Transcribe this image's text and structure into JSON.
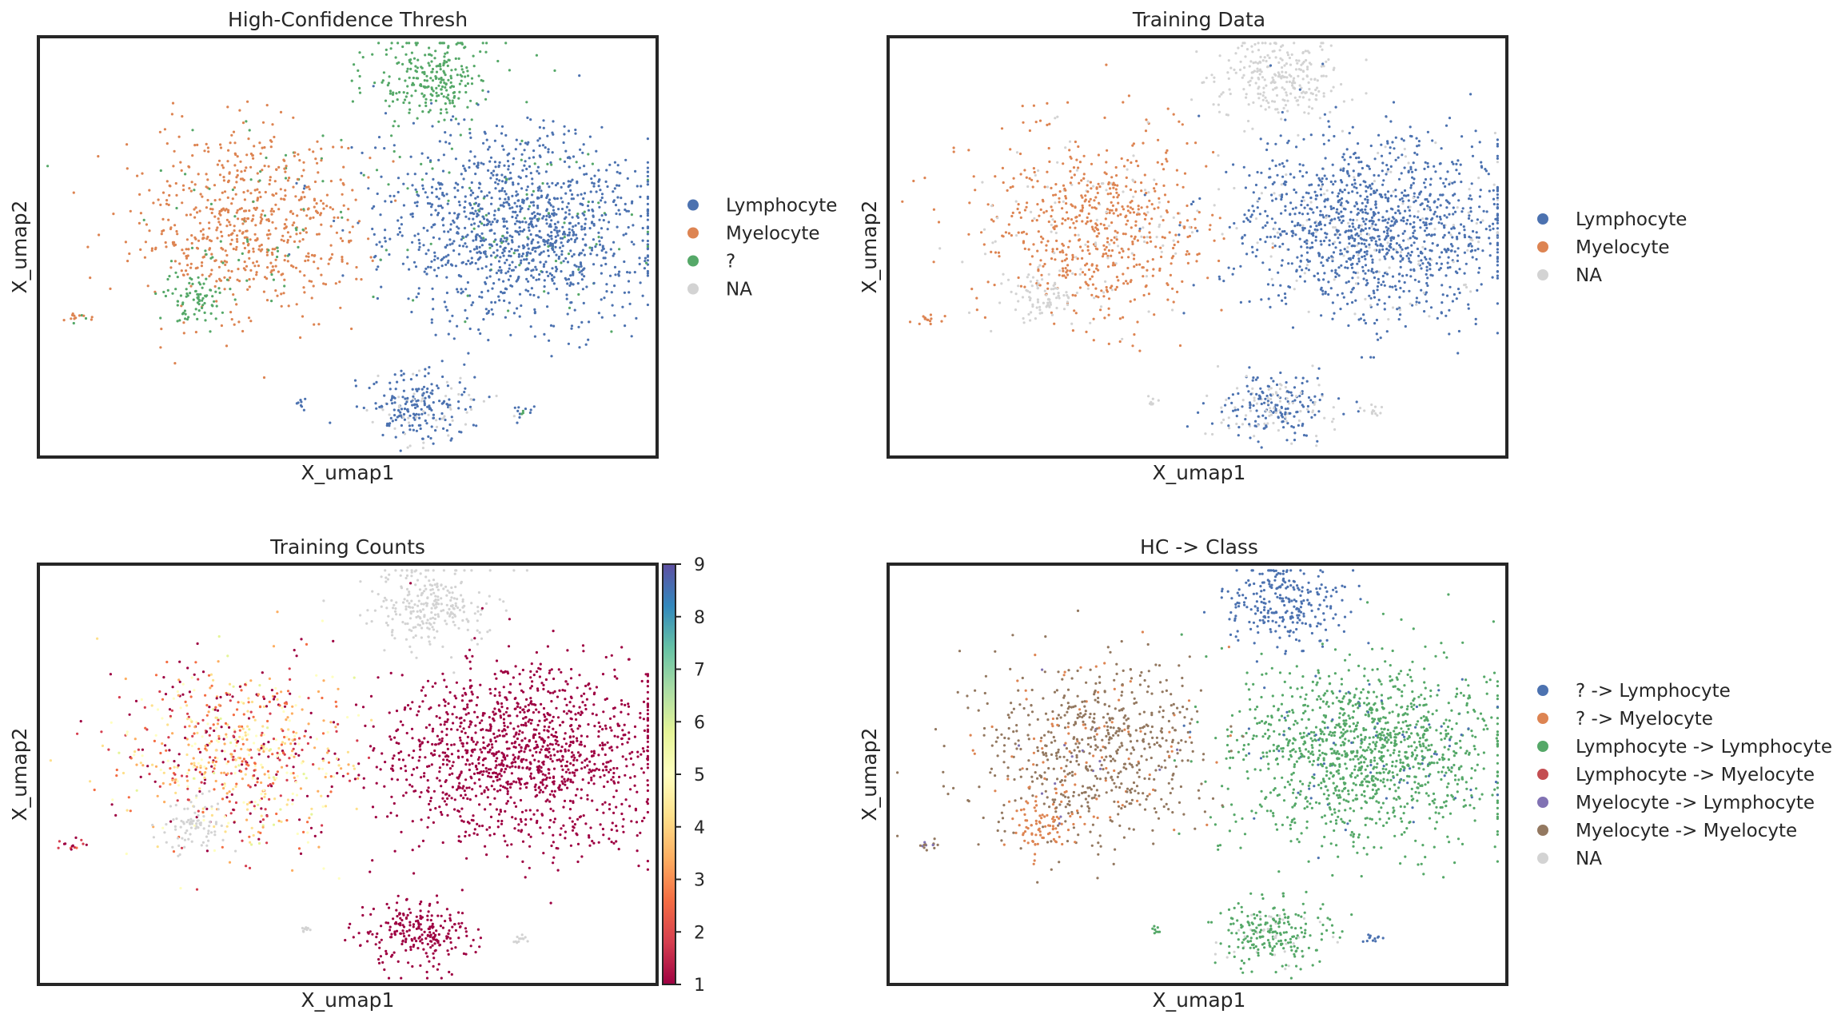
{
  "chart_data": [
    {
      "type": "scatter",
      "title": "High-Confidence Thresh",
      "xlabel": "X_umap1",
      "ylabel": "X_umap2",
      "legend_position": "right",
      "categories": [
        {
          "name": "Lymphocyte",
          "color": "#4c72b0"
        },
        {
          "name": "Myelocyte",
          "color": "#dd8452"
        },
        {
          "name": "?",
          "color": "#55a868"
        },
        {
          "name": "NA",
          "color": "#d3d3d3"
        }
      ],
      "clusters": [
        {
          "name": "top-island",
          "cx": 0.64,
          "cy": 0.9,
          "mix": {
            "?": 1.0
          }
        },
        {
          "name": "lymphoid-main",
          "cx": 0.78,
          "cy": 0.55,
          "mix": {
            "Lymphocyte": 0.93,
            "?": 0.07
          }
        },
        {
          "name": "myeloid-main",
          "cx": 0.33,
          "cy": 0.55,
          "mix": {
            "Myelocyte": 0.9,
            "?": 0.1
          }
        },
        {
          "name": "left-small",
          "cx": 0.25,
          "cy": 0.38,
          "mix": {
            "?": 1.0
          }
        },
        {
          "name": "bottom-box",
          "cx": 0.62,
          "cy": 0.12,
          "mix": {
            "Lymphocyte": 0.75,
            "NA": 0.25
          }
        },
        {
          "name": "far-left",
          "cx": 0.06,
          "cy": 0.33,
          "mix": {
            "Myelocyte": 0.7,
            "?": 0.3
          }
        },
        {
          "name": "tiny-left",
          "cx": 0.43,
          "cy": 0.13,
          "mix": {
            "Lymphocyte": 1.0
          }
        },
        {
          "name": "tiny-right",
          "cx": 0.78,
          "cy": 0.11,
          "mix": {
            "Lymphocyte": 0.6,
            "?": 0.4
          }
        }
      ]
    },
    {
      "type": "scatter",
      "title": "Training Data",
      "xlabel": "X_umap1",
      "ylabel": "X_umap2",
      "legend_position": "right",
      "categories": [
        {
          "name": "Lymphocyte",
          "color": "#4c72b0"
        },
        {
          "name": "Myelocyte",
          "color": "#dd8452"
        },
        {
          "name": "NA",
          "color": "#d3d3d3"
        }
      ],
      "clusters": [
        {
          "name": "top-island",
          "cx": 0.64,
          "cy": 0.9,
          "mix": {
            "NA": 1.0
          }
        },
        {
          "name": "lymphoid-main",
          "cx": 0.78,
          "cy": 0.55,
          "mix": {
            "Lymphocyte": 0.9,
            "NA": 0.1
          }
        },
        {
          "name": "myeloid-main",
          "cx": 0.33,
          "cy": 0.55,
          "mix": {
            "Myelocyte": 0.85,
            "NA": 0.15
          }
        },
        {
          "name": "left-small",
          "cx": 0.25,
          "cy": 0.38,
          "mix": {
            "NA": 1.0
          }
        },
        {
          "name": "bottom-box",
          "cx": 0.62,
          "cy": 0.12,
          "mix": {
            "Lymphocyte": 0.65,
            "NA": 0.35
          }
        },
        {
          "name": "far-left",
          "cx": 0.06,
          "cy": 0.33,
          "mix": {
            "Myelocyte": 1.0
          }
        },
        {
          "name": "tiny-left",
          "cx": 0.43,
          "cy": 0.13,
          "mix": {
            "NA": 1.0
          }
        },
        {
          "name": "tiny-right",
          "cx": 0.78,
          "cy": 0.11,
          "mix": {
            "NA": 1.0
          }
        }
      ]
    },
    {
      "type": "scatter",
      "title": "Training Counts",
      "xlabel": "X_umap1",
      "ylabel": "X_umap2",
      "colorbar": {
        "cmap": "Spectral",
        "range": [
          1,
          9
        ],
        "ticks": [
          "1",
          "2",
          "3",
          "4",
          "5",
          "6",
          "7",
          "8",
          "9"
        ]
      },
      "na_color": "#d3d3d3",
      "clusters": [
        {
          "name": "top-island",
          "cx": 0.64,
          "cy": 0.9,
          "values": "NA"
        },
        {
          "name": "lymphoid-main",
          "cx": 0.78,
          "cy": 0.55,
          "values": [
            1,
            1
          ]
        },
        {
          "name": "myeloid-main",
          "cx": 0.33,
          "cy": 0.55,
          "values": [
            1,
            6
          ]
        },
        {
          "name": "left-small",
          "cx": 0.25,
          "cy": 0.38,
          "values": "NA"
        },
        {
          "name": "bottom-box",
          "cx": 0.62,
          "cy": 0.12,
          "values": [
            1,
            1
          ]
        },
        {
          "name": "far-left",
          "cx": 0.06,
          "cy": 0.33,
          "values": [
            1,
            3
          ]
        },
        {
          "name": "tiny-left",
          "cx": 0.43,
          "cy": 0.13,
          "values": "NA"
        },
        {
          "name": "tiny-right",
          "cx": 0.78,
          "cy": 0.11,
          "values": "NA"
        }
      ]
    },
    {
      "type": "scatter",
      "title": "HC -> Class",
      "xlabel": "X_umap1",
      "ylabel": "X_umap2",
      "legend_position": "right",
      "categories": [
        {
          "name": "? -> Lymphocyte",
          "color": "#4c72b0"
        },
        {
          "name": "? -> Myelocyte",
          "color": "#dd8452"
        },
        {
          "name": "Lymphocyte -> Lymphocyte",
          "color": "#55a868"
        },
        {
          "name": "Lymphocyte -> Myelocyte",
          "color": "#c44e52"
        },
        {
          "name": "Myelocyte -> Lymphocyte",
          "color": "#8172b3"
        },
        {
          "name": "Myelocyte -> Myelocyte",
          "color": "#937860"
        },
        {
          "name": "NA",
          "color": "#d3d3d3"
        }
      ],
      "clusters": [
        {
          "name": "top-island",
          "cx": 0.64,
          "cy": 0.9,
          "mix": {
            "? -> Lymphocyte": 1.0
          }
        },
        {
          "name": "lymphoid-main",
          "cx": 0.78,
          "cy": 0.55,
          "mix": {
            "Lymphocyte -> Lymphocyte": 0.92,
            "? -> Lymphocyte": 0.08
          }
        },
        {
          "name": "myeloid-main",
          "cx": 0.33,
          "cy": 0.55,
          "mix": {
            "Myelocyte -> Myelocyte": 0.85,
            "? -> Myelocyte": 0.13,
            "Myelocyte -> Lymphocyte": 0.02
          }
        },
        {
          "name": "left-small",
          "cx": 0.25,
          "cy": 0.38,
          "mix": {
            "? -> Myelocyte": 1.0
          }
        },
        {
          "name": "bottom-box",
          "cx": 0.62,
          "cy": 0.12,
          "mix": {
            "Lymphocyte -> Lymphocyte": 0.85,
            "NA": 0.15
          }
        },
        {
          "name": "far-left",
          "cx": 0.06,
          "cy": 0.33,
          "mix": {
            "Myelocyte -> Myelocyte": 0.6,
            "Myelocyte -> Lymphocyte": 0.4
          }
        },
        {
          "name": "tiny-left",
          "cx": 0.43,
          "cy": 0.13,
          "mix": {
            "Lymphocyte -> Lymphocyte": 1.0
          }
        },
        {
          "name": "tiny-right",
          "cx": 0.78,
          "cy": 0.11,
          "mix": {
            "? -> Lymphocyte": 1.0
          }
        }
      ]
    }
  ]
}
